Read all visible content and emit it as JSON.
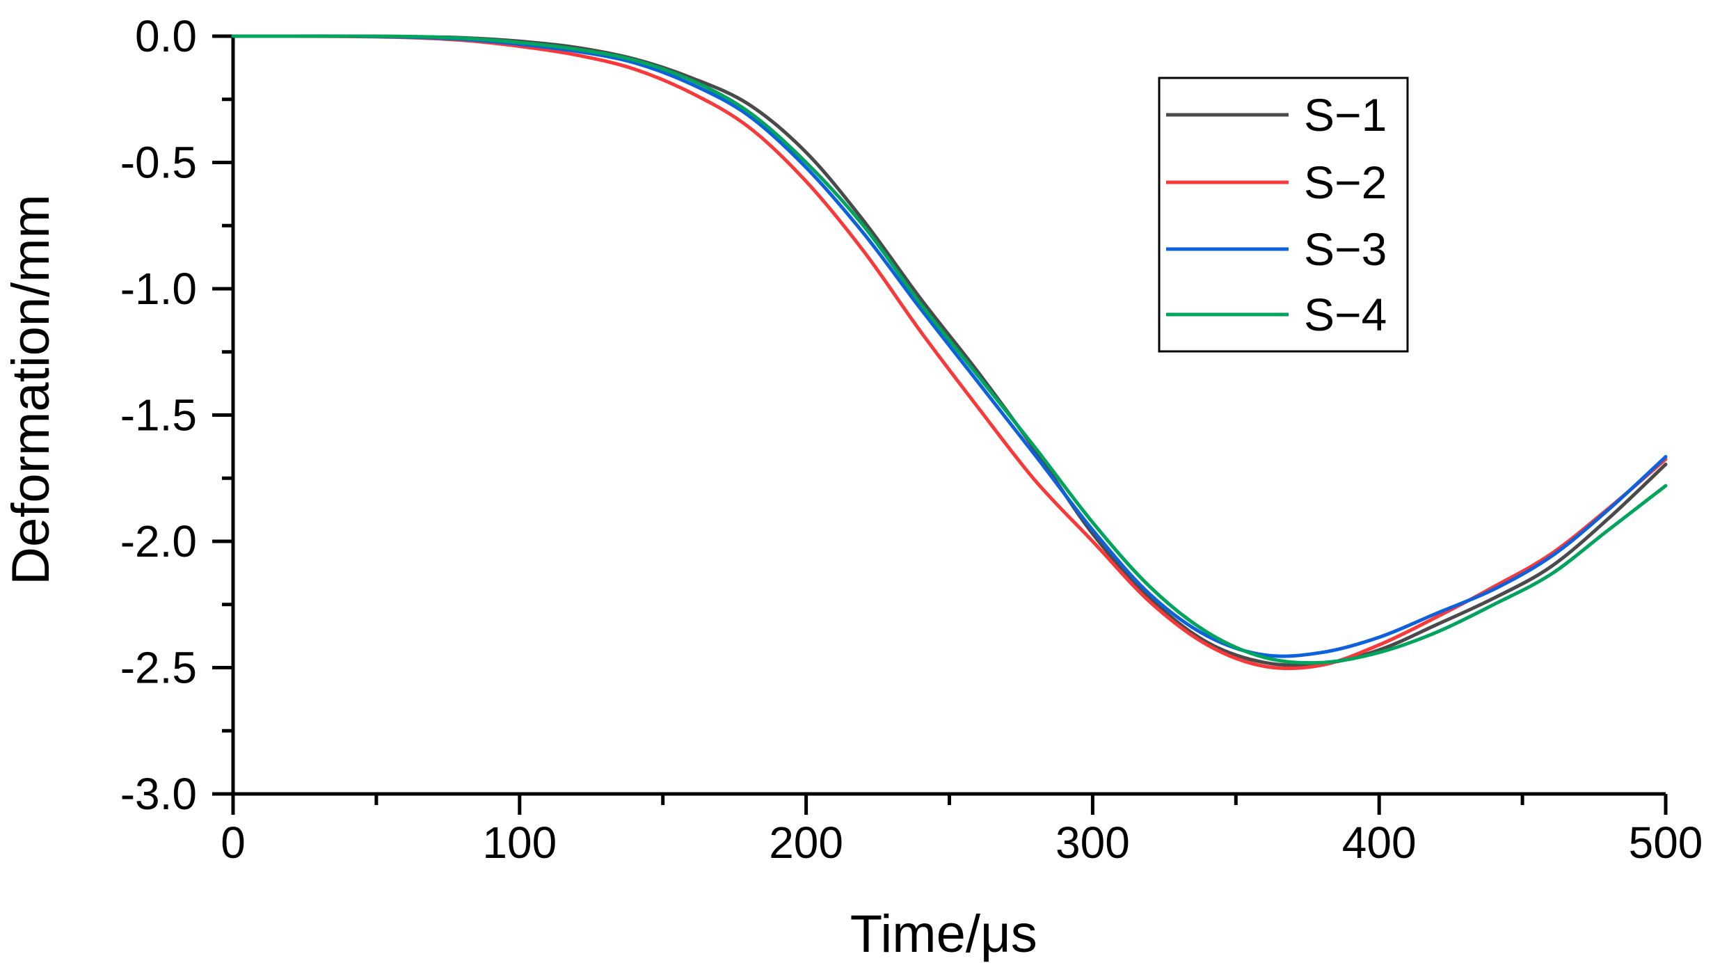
{
  "chart_data": {
    "type": "line",
    "title": "",
    "xlabel": "Time/μs",
    "ylabel": "Deformation/mm",
    "xlim": [
      0,
      500
    ],
    "ylim": [
      -3.0,
      0.0
    ],
    "grid": false,
    "legend_position": "upper-right",
    "x_major_ticks": [
      0,
      100,
      200,
      300,
      400,
      500
    ],
    "x_minor_ticks": [
      50,
      150,
      250,
      350,
      450
    ],
    "y_major_ticks": [
      0.0,
      -0.5,
      -1.0,
      -1.5,
      -2.0,
      -2.5,
      -3.0
    ],
    "y_tick_labels": [
      "0.0",
      "-0.5",
      "-1.0",
      "-1.5",
      "-2.0",
      "-2.5",
      "-3.0"
    ],
    "y_minor_ticks": [
      -0.25,
      -0.75,
      -1.25,
      -1.75,
      -2.25,
      -2.75
    ],
    "x": [
      0,
      20,
      40,
      60,
      80,
      100,
      120,
      140,
      160,
      180,
      200,
      220,
      240,
      260,
      280,
      300,
      320,
      340,
      360,
      380,
      400,
      420,
      440,
      460,
      480,
      500
    ],
    "series": [
      {
        "name": "S−1",
        "color": "#4a4a4a",
        "values": [
          0,
          0,
          0,
          -0.002,
          -0.006,
          -0.02,
          -0.045,
          -0.09,
          -0.165,
          -0.27,
          -0.46,
          -0.73,
          -1.04,
          -1.33,
          -1.64,
          -1.97,
          -2.225,
          -2.4,
          -2.48,
          -2.485,
          -2.43,
          -2.33,
          -2.225,
          -2.1,
          -1.91,
          -1.695
        ]
      },
      {
        "name": "S−2",
        "color": "#f93939",
        "values": [
          0,
          0,
          -0.001,
          -0.005,
          -0.016,
          -0.04,
          -0.075,
          -0.13,
          -0.225,
          -0.36,
          -0.575,
          -0.85,
          -1.17,
          -1.47,
          -1.76,
          -2.0,
          -2.24,
          -2.41,
          -2.495,
          -2.49,
          -2.41,
          -2.3,
          -2.18,
          -2.05,
          -1.87,
          -1.675
        ]
      },
      {
        "name": "S−3",
        "color": "#0e61dd",
        "values": [
          0,
          0,
          0,
          -0.003,
          -0.012,
          -0.032,
          -0.06,
          -0.105,
          -0.19,
          -0.315,
          -0.52,
          -0.78,
          -1.08,
          -1.37,
          -1.66,
          -1.955,
          -2.21,
          -2.375,
          -2.45,
          -2.44,
          -2.38,
          -2.285,
          -2.19,
          -2.06,
          -1.875,
          -1.665
        ]
      },
      {
        "name": "S−4",
        "color": "#00a45c",
        "values": [
          0,
          0,
          0,
          -0.001,
          -0.008,
          -0.025,
          -0.052,
          -0.095,
          -0.175,
          -0.3,
          -0.5,
          -0.75,
          -1.06,
          -1.345,
          -1.63,
          -1.925,
          -2.18,
          -2.36,
          -2.46,
          -2.48,
          -2.44,
          -2.36,
          -2.25,
          -2.13,
          -1.955,
          -1.78
        ]
      }
    ]
  }
}
